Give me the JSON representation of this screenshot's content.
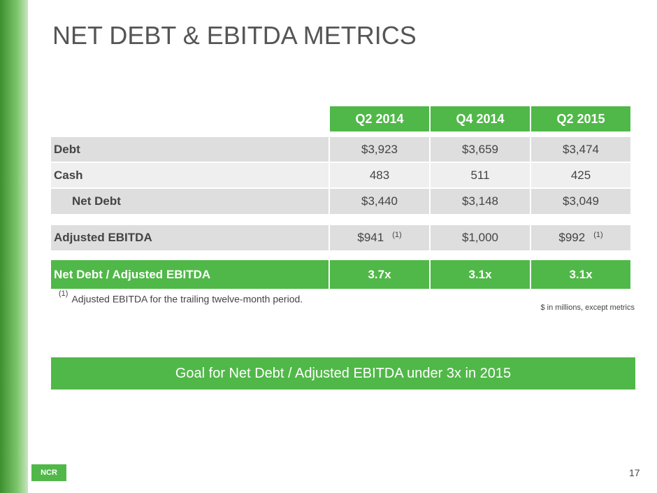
{
  "header": {
    "title": "NET DEBT & EBITDA  METRICS"
  },
  "table": {
    "columns": [
      "Q2 2014",
      "Q4 2014",
      "Q2 2015"
    ],
    "groups": [
      [
        {
          "label": "Debt",
          "cells": [
            "$3,923",
            "$3,659",
            "$3,474"
          ]
        },
        {
          "label": "Cash",
          "cells": [
            "483",
            "511",
            "425"
          ]
        },
        {
          "label": "Net Debt",
          "cells": [
            "$3,440",
            "$3,148",
            "$3,049"
          ]
        }
      ],
      [
        {
          "label": "Adjusted EBITDA",
          "cells": [
            {
              "text": "$941",
              "note": "(1)"
            },
            {
              "text": "$1,000"
            },
            {
              "text": "$992",
              "note": "(1)"
            }
          ]
        }
      ],
      [
        {
          "label": "Net Debt / Adjusted EBITDA",
          "cells": [
            "3.7x",
            "3.1x",
            "3.1x"
          ]
        }
      ]
    ]
  },
  "footnote": {
    "marker": "(1)",
    "text": "Adjusted EBITDA for the trailing twelve-month period."
  },
  "units_note": "$ in millions, except metrics",
  "goal": "Goal for Net Debt / Adjusted EBITDA under 3x in 2015",
  "logo": "NCR",
  "page_number": "17"
}
